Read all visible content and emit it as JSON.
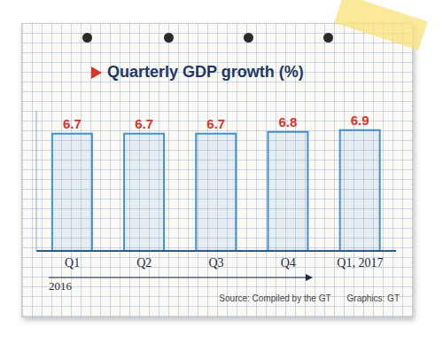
{
  "chart_data": {
    "type": "bar",
    "title": "Quarterly GDP growth (%)",
    "categories": [
      "Q1",
      "Q2",
      "Q3",
      "Q4",
      "Q1, 2017"
    ],
    "values": [
      6.7,
      6.7,
      6.7,
      6.8,
      6.9
    ],
    "color": "#4a90c8",
    "ylim": [
      0,
      8
    ],
    "grid": false,
    "data_labels": true,
    "tick_labels": "x",
    "annotations": [
      "2016",
      "Source: Compiled by the GT",
      "Graphics: GT"
    ]
  }
}
